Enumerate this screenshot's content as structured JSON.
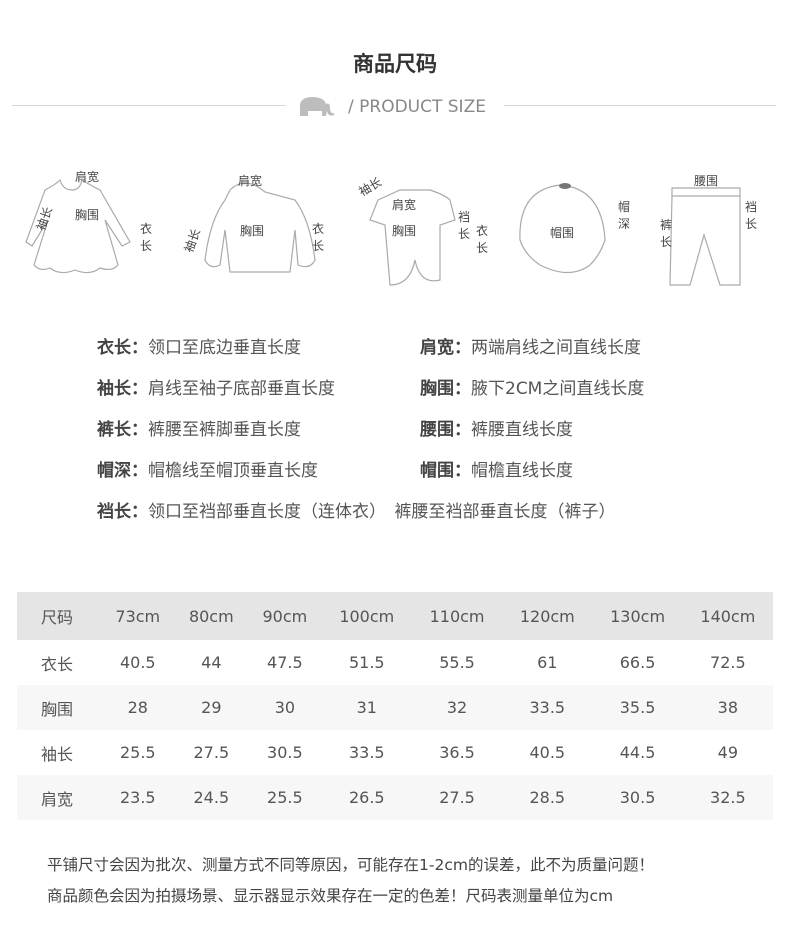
{
  "header": {
    "title": "商品尺码",
    "subtitle": "/ PRODUCT SIZE",
    "icon": "elephant-icon"
  },
  "illustrations": [
    {
      "item": "dress",
      "labels": [
        "肩宽",
        "袖长",
        "胸围",
        "衣长"
      ]
    },
    {
      "item": "hoodie",
      "labels": [
        "肩宽",
        "袖长",
        "胸围",
        "衣长"
      ]
    },
    {
      "item": "romper",
      "labels": [
        "袖长",
        "肩宽",
        "胸围",
        "裆长",
        "衣长"
      ]
    },
    {
      "item": "cap",
      "labels": [
        "帽围",
        "帽深"
      ]
    },
    {
      "item": "pants",
      "labels": [
        "腰围",
        "裤长",
        "裆长"
      ]
    }
  ],
  "definitions": [
    {
      "term": "衣长：",
      "desc": "领口至底边垂直长度"
    },
    {
      "term": "肩宽：",
      "desc": "两端肩线之间直线长度"
    },
    {
      "term": "袖长：",
      "desc": "肩线至袖子底部垂直长度"
    },
    {
      "term": "胸围：",
      "desc": "腋下2CM之间直线长度"
    },
    {
      "term": "裤长：",
      "desc": "裤腰至裤脚垂直长度"
    },
    {
      "term": "腰围：",
      "desc": "裤腰直线长度"
    },
    {
      "term": "帽深：",
      "desc": "帽檐线至帽顶垂直长度"
    },
    {
      "term": "帽围：",
      "desc": "帽檐直线长度"
    },
    {
      "term": "裆长：",
      "desc": "领口至裆部垂直长度（连体衣）　裤腰至裆部垂直长度（裤子）"
    }
  ],
  "table": {
    "headers": [
      "尺码",
      "73cm",
      "80cm",
      "90cm",
      "100cm",
      "110cm",
      "120cm",
      "130cm",
      "140cm"
    ],
    "rows": [
      [
        "衣长",
        "40.5",
        "44",
        "47.5",
        "51.5",
        "55.5",
        "61",
        "66.5",
        "72.5"
      ],
      [
        "胸围",
        "28",
        "29",
        "30",
        "31",
        "32",
        "33.5",
        "35.5",
        "38"
      ],
      [
        "袖长",
        "25.5",
        "27.5",
        "30.5",
        "33.5",
        "36.5",
        "40.5",
        "44.5",
        "49"
      ],
      [
        "肩宽",
        "23.5",
        "24.5",
        "25.5",
        "26.5",
        "27.5",
        "28.5",
        "30.5",
        "32.5"
      ]
    ]
  },
  "notes": [
    "平铺尺寸会因为批次、测量方式不同等原因，可能存在1-2cm的误差，此不为质量问题！",
    "商品颜色会因为拍摄场景、显示器显示效果存在一定的色差！尺码表测量单位为cm"
  ]
}
